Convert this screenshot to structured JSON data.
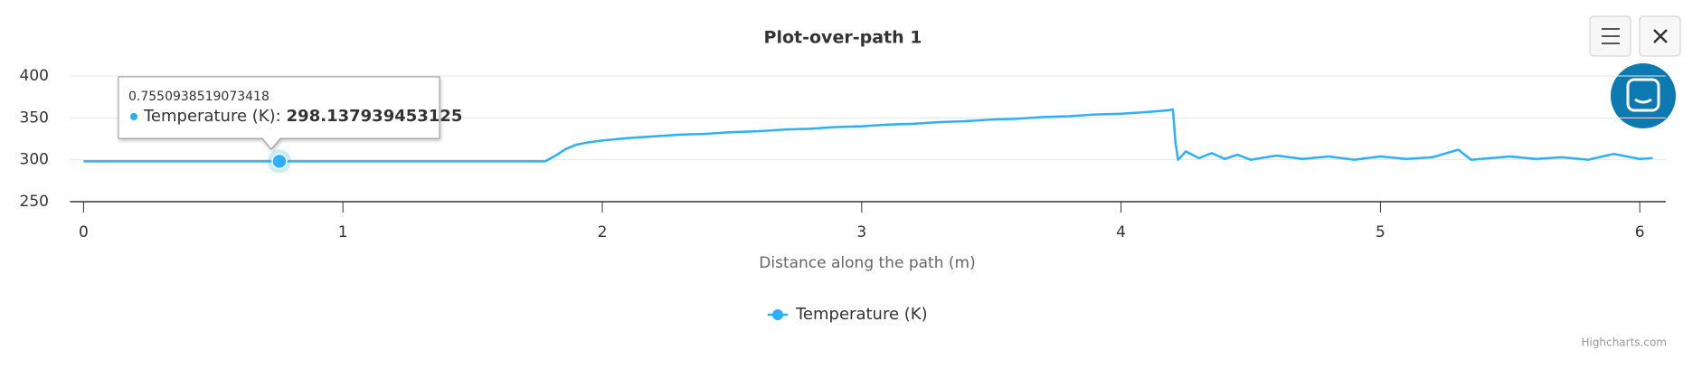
{
  "chart_data": {
    "type": "line",
    "title": "Plot-over-path 1",
    "x_label": "Distance along the path (m)",
    "x": [
      0,
      0.3,
      0.7550938519073418,
      1.2,
      1.5,
      1.78,
      1.82,
      1.86,
      1.9,
      1.95,
      2.0,
      2.1,
      2.2,
      2.3,
      2.4,
      2.5,
      2.6,
      2.7,
      2.8,
      2.9,
      3.0,
      3.1,
      3.2,
      3.3,
      3.4,
      3.5,
      3.6,
      3.7,
      3.8,
      3.9,
      4.0,
      4.1,
      4.18,
      4.2,
      4.21,
      4.22,
      4.25,
      4.3,
      4.35,
      4.4,
      4.45,
      4.5,
      4.6,
      4.7,
      4.8,
      4.9,
      5.0,
      5.1,
      5.2,
      5.3,
      5.35,
      5.5,
      5.6,
      5.7,
      5.8,
      5.9,
      6.0,
      6.05
    ],
    "series": [
      {
        "name": "Temperature (K)",
        "color": "#2caffe",
        "values": [
          298.14,
          298.14,
          298.137939453125,
          298.14,
          298.14,
          298.14,
          305,
          313,
          318,
          321,
          323,
          326,
          328,
          330,
          331,
          333,
          334,
          336,
          337,
          339,
          340,
          342,
          343,
          345,
          346,
          348,
          349,
          351,
          352,
          354,
          355,
          357,
          359,
          360,
          320,
          300,
          310,
          302,
          308,
          301,
          306,
          300,
          305,
          301,
          304,
          300,
          304,
          301,
          303,
          312,
          300,
          304,
          301,
          303,
          300,
          307,
          301,
          302
        ]
      }
    ],
    "xlim": [
      0,
      6.1
    ],
    "xticks": [
      0,
      1,
      2,
      3,
      4,
      5,
      6
    ],
    "ylim": [
      250,
      400
    ],
    "yticks": [
      250,
      300,
      350,
      400
    ],
    "grid": true,
    "tooltip": {
      "header": 0.7550938519073418,
      "label": "Temperature (K):",
      "value": 298.137939453125
    },
    "credits": "Highcharts.com"
  }
}
